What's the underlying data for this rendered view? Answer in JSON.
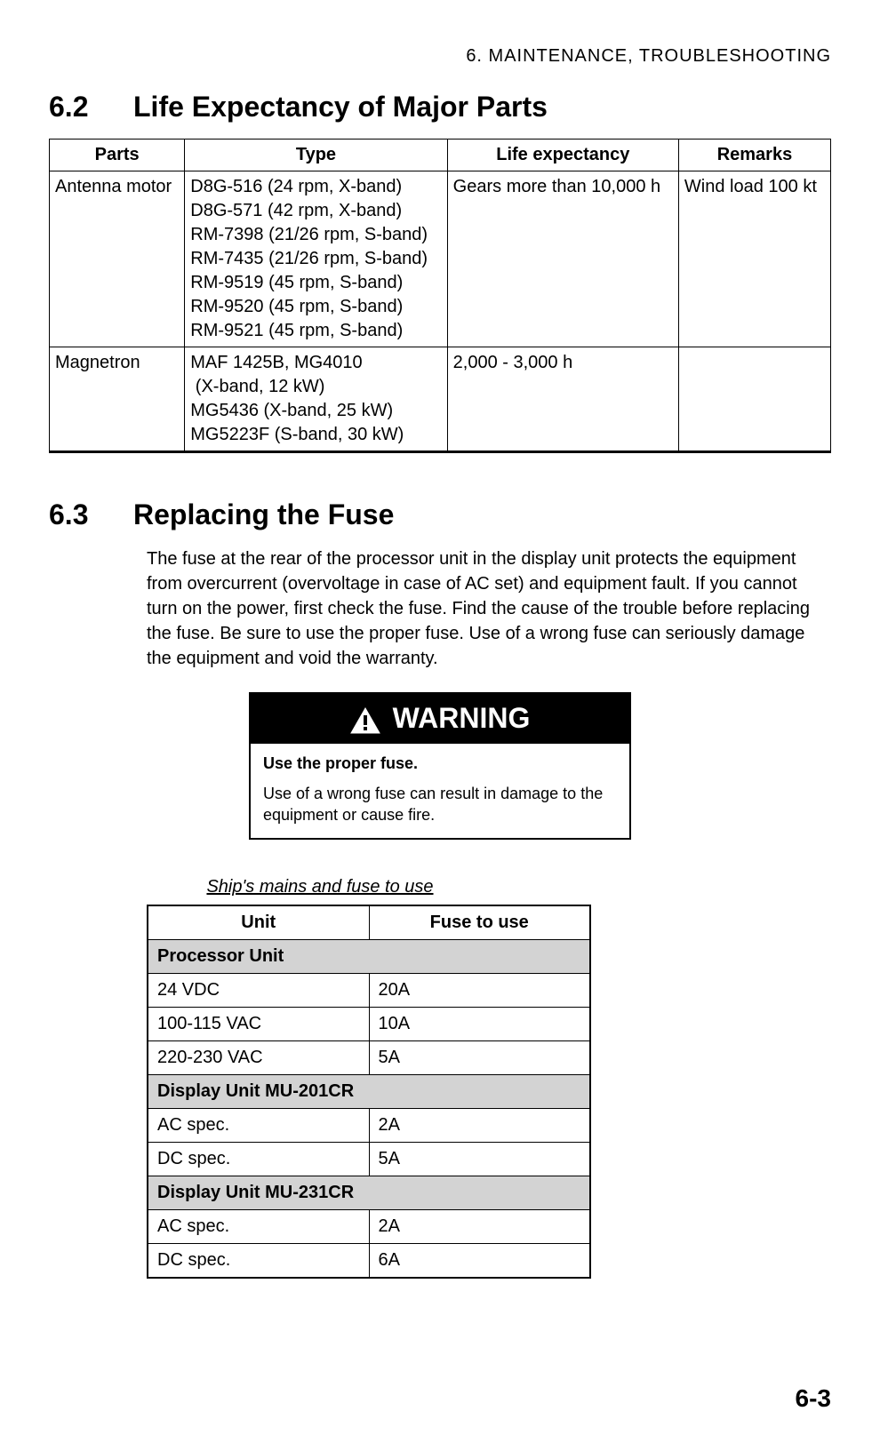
{
  "chapter_header": "6.  MAINTENANCE,  TROUBLESHOOTING",
  "section62": {
    "number": "6.2",
    "title": "Life Expectancy of Major Parts",
    "columns": [
      "Parts",
      "Type",
      "Life expectancy",
      "Remarks"
    ],
    "rows": [
      {
        "parts": "Antenna motor",
        "type_lines": [
          "D8G-516 (24 rpm, X-band)",
          "D8G-571 (42 rpm, X-band)",
          "RM-7398 (21/26 rpm, S-band)",
          "RM-7435 (21/26 rpm, S-band)",
          "RM-9519 (45 rpm, S-band)",
          "RM-9520 (45 rpm, S-band)",
          "RM-9521 (45 rpm, S-band)"
        ],
        "life": "Gears more than 10,000 h",
        "remarks": "Wind load 100 kt"
      },
      {
        "parts": "Magnetron",
        "type_lines": [
          "MAF 1425B, MG4010",
          " (X-band, 12 kW)",
          "MG5436 (X-band, 25 kW)",
          "MG5223F (S-band, 30 kW)"
        ],
        "life": "2,000 - 3,000 h",
        "remarks": ""
      }
    ]
  },
  "section63": {
    "number": "6.3",
    "title": "Replacing the Fuse",
    "paragraph": "The fuse at the rear of the processor unit in the display unit protects the equipment from overcurrent (overvoltage in case of AC set) and equipment fault. If you cannot turn on the power, first check the fuse. Find the cause of the trouble before replacing the fuse. Be sure to use the proper fuse. Use of a wrong fuse can seriously damage the equipment and void the warranty."
  },
  "warning": {
    "label": "WARNING",
    "bold_line": "Use the proper fuse.",
    "text": "Use of a wrong fuse can result in damage to the equipment or cause fire."
  },
  "fuse_table": {
    "caption": "Ship's mains and fuse to use",
    "columns": [
      "Unit",
      "Fuse to use"
    ],
    "sections": [
      {
        "header": "Processor Unit",
        "rows": [
          [
            "24 VDC",
            "20A"
          ],
          [
            "100-115 VAC",
            "10A"
          ],
          [
            "220-230 VAC",
            "5A"
          ]
        ]
      },
      {
        "header": "Display Unit MU-201CR",
        "rows": [
          [
            "AC spec.",
            "2A"
          ],
          [
            "DC spec.",
            "5A"
          ]
        ]
      },
      {
        "header": "Display Unit MU-231CR",
        "rows": [
          [
            "AC spec.",
            "2A"
          ],
          [
            "DC spec.",
            "6A"
          ]
        ]
      }
    ]
  },
  "page_number": "6-3"
}
